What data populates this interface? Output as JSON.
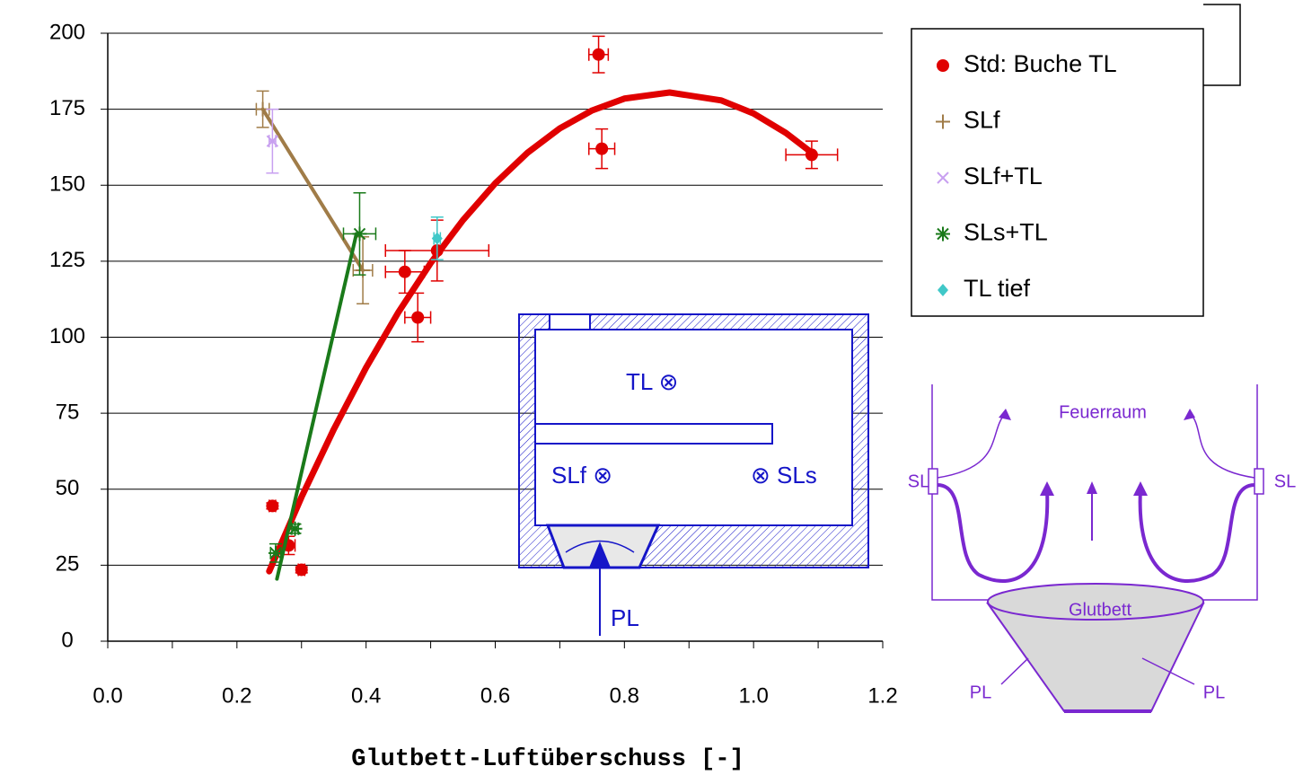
{
  "chart_data": {
    "type": "scatter",
    "x_label": "Glutbett-Luftüberschuss [-]",
    "xlim": [
      0,
      1.2
    ],
    "xticks": [
      {
        "value": 0,
        "label": "0.0"
      },
      0.2,
      0.4,
      0.6,
      0.8,
      {
        "value": 1,
        "label": "1.0"
      },
      1.2
    ],
    "xminor_ticks": [
      0.1,
      0.3,
      0.5,
      0.7,
      0.9,
      1.1
    ],
    "ylim": [
      0,
      200
    ],
    "yticks": [
      0,
      25,
      50,
      75,
      100,
      125,
      150,
      175,
      200
    ],
    "grid": true,
    "legend": "top-right",
    "series": [
      {
        "name": "Std: Buche TL",
        "color": "#e00000",
        "marker": "circle",
        "x": [
          0.76,
          0.765,
          1.09,
          0.51,
          0.46,
          0.48,
          0.28,
          0.255,
          0.3
        ],
        "values": [
          193,
          162,
          160,
          128.5,
          121.5,
          106.5,
          31.5,
          44.5,
          23.5
        ],
        "xerr": [
          0.015,
          0.02,
          0.04,
          0.08,
          0.03,
          0.02,
          0.01,
          0.005,
          0.005
        ],
        "yerr": [
          6,
          6.5,
          4.5,
          10,
          7,
          8,
          3,
          1,
          1
        ],
        "fit": {
          "x": [
            0.25,
            0.3,
            0.35,
            0.4,
            0.45,
            0.5,
            0.55,
            0.6,
            0.65,
            0.7,
            0.75,
            0.8,
            0.87,
            0.95,
            1.0,
            1.05,
            1.09
          ],
          "values": [
            23,
            47.4,
            69.7,
            90,
            108.2,
            124.4,
            138.5,
            150.6,
            160.7,
            168.7,
            174.6,
            178.5,
            180.5,
            177.9,
            173.6,
            167.2,
            160.7
          ]
        }
      },
      {
        "name": "SLf",
        "color": "#a07c48",
        "marker": "plus",
        "x": [
          0.24,
          0.395
        ],
        "values": [
          175,
          122
        ],
        "xerr": [
          0.01,
          0.015
        ],
        "yerr": [
          6,
          11
        ],
        "fit": {
          "x": [
            0.24,
            0.395
          ],
          "values": [
            175,
            122
          ]
        }
      },
      {
        "name": "SLf+TL",
        "color": "#c8a0f0",
        "marker": "cross",
        "x": [
          0.255
        ],
        "values": [
          164.5
        ],
        "xerr": [
          0.005
        ],
        "yerr": [
          10.5
        ]
      },
      {
        "name": "SLs+TL",
        "color": "#1a7a1a",
        "marker": "star",
        "x": [
          0.39,
          0.26,
          0.29
        ],
        "values": [
          134,
          29,
          37
        ],
        "xerr": [
          0.025,
          0.008,
          0.005
        ],
        "yerr": [
          13.5,
          3,
          1.5
        ],
        "fit": {
          "x": [
            0.262,
            0.385
          ],
          "values": [
            20.5,
            134
          ]
        }
      },
      {
        "name": "TL tief",
        "color": "#40c8c8",
        "marker": "diamond",
        "x": [
          0.51
        ],
        "values": [
          132.5
        ],
        "xerr": [
          0.005
        ],
        "yerr": [
          7
        ]
      }
    ]
  },
  "inset_diagram": {
    "tl": "TL ⊗",
    "slf": "SLf ⊗",
    "sls": "⊗ SLs",
    "pl": "PL"
  },
  "firebox_diagram": {
    "feuerraum": "Feuerraum",
    "sl_left": "SL",
    "sl_right": "SL",
    "glutbett": "Glutbett",
    "pl_left": "PL",
    "pl_right": "PL"
  }
}
